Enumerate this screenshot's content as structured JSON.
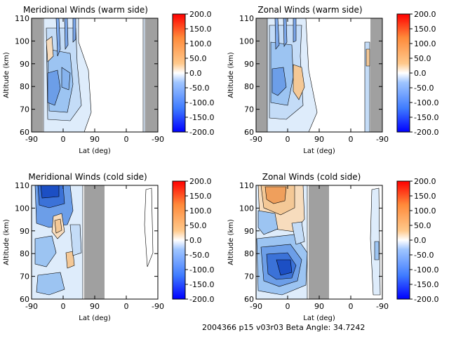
{
  "footer": "2004366 p15 v03r03 Beta Angle: 34.7242",
  "colorbar": {
    "ticks": [
      "200.0",
      "150.0",
      "100.0",
      "50.0",
      "0.0",
      "-50.0",
      "-100.0",
      "-150.0",
      "-200.0"
    ],
    "colors": [
      "#0000ff",
      "#3f7bff",
      "#9fc5ff",
      "#ffffff",
      "#ffc98c",
      "#ff8a3a",
      "#ff0000"
    ]
  },
  "chart_data": [
    {
      "type": "heatmap",
      "title": "Meridional Winds (warm side)",
      "xlabel": "Lat (deg)",
      "ylabel": "Altitude (km)",
      "xticks": [
        "-90",
        "0",
        "90",
        "0",
        "-90"
      ],
      "yticks": [
        60,
        70,
        80,
        90,
        100,
        110
      ],
      "ylim": [
        60,
        110
      ],
      "color_range": [
        -200,
        200
      ],
      "missing_color": "#a0a0a0",
      "features": [
        {
          "lat": -55,
          "alt": 78,
          "value": -90
        },
        {
          "lat": -15,
          "alt": 85,
          "value": -60
        },
        {
          "lat": -65,
          "alt": 95,
          "value": 40
        },
        {
          "lat": 0,
          "alt": 105,
          "value": -50
        },
        {
          "lat": -60,
          "alt": 66,
          "value": -40
        },
        {
          "lat": 10,
          "alt": 65,
          "value": -30
        }
      ]
    },
    {
      "type": "heatmap",
      "title": "Zonal Winds (warm side)",
      "xlabel": "Lat (deg)",
      "ylabel": "Altitude (km)",
      "xticks": [
        "-90",
        "0",
        "90",
        "0",
        "-90"
      ],
      "yticks": [
        60,
        70,
        80,
        90,
        100,
        110
      ],
      "ylim": [
        60,
        110
      ],
      "color_range": [
        -200,
        200
      ],
      "missing_color": "#a0a0a0",
      "features": [
        {
          "lat": -50,
          "alt": 82,
          "value": -70
        },
        {
          "lat": 10,
          "alt": 84,
          "value": 40
        },
        {
          "lat": -40,
          "alt": 100,
          "value": -60
        },
        {
          "lat": -10,
          "alt": 70,
          "value": -35
        },
        {
          "lat": -60,
          "alt": 92,
          "value": -40
        }
      ]
    },
    {
      "type": "heatmap",
      "title": "Meridional Winds (cold side)",
      "xlabel": "Lat (deg)",
      "ylabel": "Altitude (km)",
      "xticks": [
        "-90",
        "0",
        "90",
        "0",
        "-90"
      ],
      "yticks": [
        60,
        70,
        80,
        90,
        100,
        110
      ],
      "ylim": [
        60,
        110
      ],
      "color_range": [
        -200,
        200
      ],
      "missing_color": "#a0a0a0",
      "features": [
        {
          "lat": -40,
          "alt": 104,
          "value": -160
        },
        {
          "lat": -15,
          "alt": 93,
          "value": 40
        },
        {
          "lat": 10,
          "alt": 78,
          "value": 30
        },
        {
          "lat": -50,
          "alt": 75,
          "value": -50
        },
        {
          "lat": -30,
          "alt": 65,
          "value": -45
        },
        {
          "lat": 10,
          "alt": 90,
          "value": -30
        }
      ]
    },
    {
      "type": "heatmap",
      "title": "Zonal Winds (cold side)",
      "xlabel": "Lat (deg)",
      "ylabel": "Altitude (km)",
      "xticks": [
        "-90",
        "0",
        "90",
        "0",
        "-90"
      ],
      "yticks": [
        60,
        70,
        80,
        90,
        100,
        110
      ],
      "ylim": [
        60,
        110
      ],
      "color_range": [
        -200,
        200
      ],
      "missing_color": "#a0a0a0",
      "features": [
        {
          "lat": -10,
          "alt": 75,
          "value": -150
        },
        {
          "lat": -40,
          "alt": 105,
          "value": 70
        },
        {
          "lat": -40,
          "alt": 96,
          "value": -40
        },
        {
          "lat": 0,
          "alt": 92,
          "value": 30
        },
        {
          "lat": -60,
          "alt": 65,
          "value": -40
        }
      ]
    }
  ]
}
